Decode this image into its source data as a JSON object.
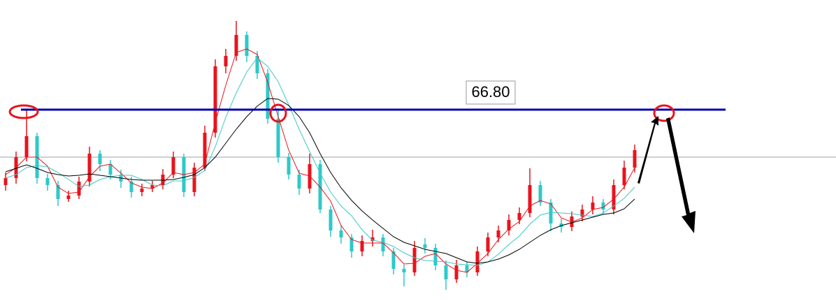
{
  "chart_data": {
    "type": "candlestick",
    "ylim": [
      39.4,
      82.5
    ],
    "up_color": "#e8141c",
    "down_color": "#2ec8c8",
    "open": [
      56.0,
      57.0,
      60.0,
      63.0,
      57.0,
      56.0,
      54.0,
      54.5,
      56.5,
      60.5,
      59.0,
      57.5,
      56.5,
      55.0,
      55.5,
      56.0,
      57.5,
      60.0,
      55.0,
      58.5,
      63.5,
      73.0,
      74.5,
      77.5,
      74.5,
      72.0,
      65.5,
      60.0,
      57.5,
      55.5,
      59.0,
      52.5,
      49.5,
      48.5,
      46.5,
      48.0,
      48.5,
      46.5,
      44.0,
      43.5,
      47.5,
      47.0,
      44.5,
      42.5,
      44.5,
      43.5,
      46.5,
      48.5,
      49.5,
      51.0,
      52.0,
      56.0,
      53.5,
      50.5,
      50.0,
      51.5,
      52.5,
      53.5,
      52.5,
      56.0,
      58.5
    ],
    "high": [
      57.8,
      60.8,
      66.8,
      63.5,
      57.6,
      56.6,
      55.2,
      57.2,
      61.5,
      61.0,
      59.6,
      58.2,
      57.2,
      56.2,
      56.6,
      58.3,
      60.8,
      60.5,
      59.2,
      64.5,
      74.0,
      75.5,
      79.5,
      78.0,
      75.2,
      72.6,
      67.0,
      60.6,
      58.2,
      60.5,
      59.6,
      53.0,
      50.2,
      49.0,
      48.8,
      49.6,
      49.0,
      47.0,
      44.6,
      48.0,
      48.4,
      47.6,
      45.2,
      45.3,
      45.0,
      47.2,
      49.2,
      50.2,
      51.8,
      52.8,
      58.4,
      56.6,
      54.0,
      51.2,
      52.2,
      53.2,
      54.4,
      54.0,
      56.8,
      59.5,
      61.8
    ],
    "low": [
      55.2,
      56.2,
      59.4,
      56.2,
      55.2,
      53.0,
      53.6,
      54.0,
      55.8,
      58.0,
      56.8,
      55.6,
      54.2,
      54.4,
      55.0,
      55.4,
      57.0,
      54.3,
      54.4,
      58.0,
      62.8,
      72.0,
      73.8,
      73.6,
      71.2,
      64.8,
      59.2,
      56.8,
      54.6,
      54.8,
      52.0,
      48.6,
      47.6,
      45.6,
      45.8,
      47.2,
      45.8,
      43.2,
      41.5,
      43.0,
      46.2,
      43.8,
      41.0,
      42.0,
      42.8,
      43.0,
      45.8,
      47.8,
      48.8,
      50.4,
      51.4,
      53.0,
      49.4,
      49.2,
      49.4,
      50.8,
      51.8,
      51.8,
      51.8,
      55.4,
      57.8
    ],
    "close": [
      57.0,
      60.0,
      63.0,
      57.0,
      56.0,
      54.0,
      54.5,
      56.5,
      60.5,
      59.0,
      57.5,
      56.5,
      55.0,
      55.5,
      56.0,
      57.5,
      60.0,
      55.0,
      58.5,
      63.5,
      73.0,
      74.5,
      77.5,
      74.5,
      72.0,
      65.5,
      60.0,
      57.5,
      55.5,
      59.0,
      52.5,
      49.5,
      48.5,
      46.5,
      48.0,
      48.5,
      46.5,
      44.0,
      43.5,
      47.0,
      47.0,
      44.5,
      42.5,
      44.5,
      43.5,
      46.5,
      48.5,
      49.5,
      51.0,
      52.0,
      56.0,
      53.5,
      50.5,
      50.0,
      51.5,
      52.5,
      53.5,
      52.5,
      56.0,
      58.5,
      61.0
    ],
    "lines": [
      {
        "color": "#e8141c",
        "values": [
          57.5,
          58.5,
          60.0,
          60.0,
          58.7,
          55.7,
          54.8,
          55.0,
          57.2,
          58.7,
          59.0,
          57.7,
          56.3,
          55.7,
          55.5,
          56.3,
          57.8,
          57.5,
          57.8,
          59.0,
          65.0,
          70.3,
          75.0,
          75.5,
          74.7,
          70.7,
          65.8,
          61.0,
          57.7,
          57.3,
          55.7,
          53.7,
          50.2,
          48.2,
          47.7,
          47.7,
          47.7,
          46.3,
          44.7,
          44.8,
          45.8,
          46.2,
          44.7,
          43.8,
          43.5,
          44.8,
          46.2,
          48.2,
          49.7,
          50.8,
          53.0,
          53.8,
          53.3,
          51.3,
          50.7,
          51.3,
          52.5,
          52.8,
          54.0,
          55.7,
          58.5
        ]
      },
      {
        "color": "#3cc8c8",
        "values": [
          57.0,
          57.5,
          58.5,
          58.8,
          58.6,
          57.8,
          56.8,
          55.8,
          56.0,
          56.8,
          57.2,
          57.4,
          57.4,
          56.8,
          56.0,
          55.9,
          56.6,
          56.6,
          57.1,
          58.1,
          61.5,
          65.7,
          69.2,
          72.2,
          74.2,
          73.0,
          70.8,
          67.5,
          64.0,
          60.8,
          57.7,
          55.0,
          53.0,
          51.6,
          49.6,
          48.1,
          47.8,
          47.2,
          46.3,
          45.6,
          45.2,
          45.1,
          45.0,
          44.7,
          44.6,
          44.5,
          45.0,
          46.1,
          47.5,
          48.7,
          50.4,
          51.7,
          52.1,
          52.0,
          51.9,
          51.7,
          51.5,
          52.0,
          53.0,
          54.1,
          55.7
        ]
      },
      {
        "color": "#000000",
        "values": [
          57.9,
          58.4,
          58.9,
          58.4,
          57.8,
          57.5,
          57.3,
          57.4,
          57.6,
          57.4,
          57.2,
          57.0,
          56.8,
          56.7,
          56.7,
          56.7,
          56.8,
          57.1,
          57.5,
          58.5,
          60.0,
          62.0,
          64.0,
          65.8,
          67.3,
          68.4,
          68.3,
          67.4,
          65.8,
          63.5,
          60.5,
          57.8,
          55.6,
          53.8,
          52.3,
          51.0,
          49.8,
          48.6,
          47.8,
          47.3,
          46.8,
          46.5,
          46.2,
          45.6,
          45.0,
          44.8,
          45.0,
          45.4,
          46.0,
          46.8,
          47.8,
          48.8,
          49.6,
          50.2,
          50.6,
          51.0,
          51.4,
          51.8,
          52.0,
          52.6,
          54.0
        ]
      }
    ],
    "reference_line": 60.0,
    "level": {
      "value": 66.8,
      "label": "66.80",
      "color": "#0000b4"
    }
  }
}
